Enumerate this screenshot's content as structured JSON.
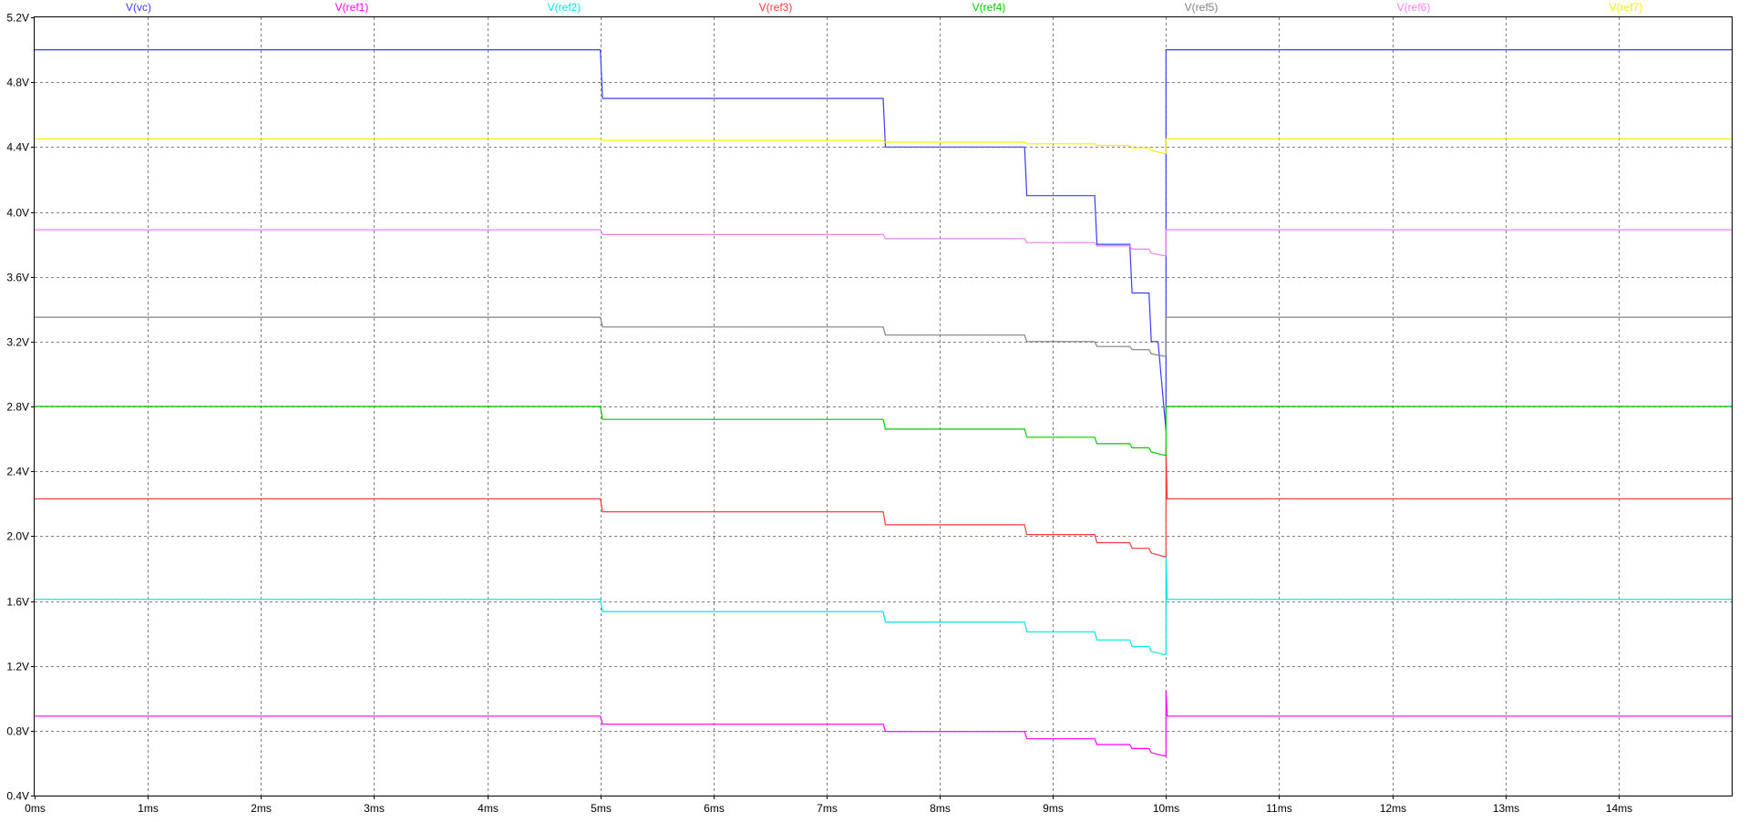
{
  "chart_data": {
    "type": "line",
    "x_unit": "ms",
    "xlim": [
      0,
      15
    ],
    "ylim": [
      0.4,
      5.2
    ],
    "x_ticks": [
      "0ms",
      "1ms",
      "2ms",
      "3ms",
      "4ms",
      "5ms",
      "6ms",
      "7ms",
      "8ms",
      "9ms",
      "10ms",
      "11ms",
      "12ms",
      "13ms",
      "14ms"
    ],
    "y_ticks": [
      "0.4V",
      "0.8V",
      "1.2V",
      "1.6V",
      "2.0V",
      "2.4V",
      "2.8V",
      "3.2V",
      "3.6V",
      "4.0V",
      "4.4V",
      "4.8V",
      "5.2V"
    ],
    "grid": true,
    "legend_position": "top",
    "series": [
      {
        "name": "V(vc)",
        "color": "#3b3bff",
        "x": [
          0,
          5.0,
          5.02,
          7.5,
          7.52,
          8.75,
          8.77,
          9.37,
          9.39,
          9.68,
          9.7,
          9.85,
          9.87,
          9.93,
          10.0,
          10.0,
          15.0
        ],
        "y": [
          5.0,
          5.0,
          4.7,
          4.7,
          4.4,
          4.4,
          4.1,
          4.1,
          3.8,
          3.8,
          3.5,
          3.5,
          3.2,
          3.2,
          2.65,
          5.0,
          5.0
        ]
      },
      {
        "name": "V(ref1)",
        "color": "#ff00ff",
        "x": [
          0,
          5.0,
          5.02,
          7.5,
          7.52,
          8.75,
          8.77,
          9.37,
          9.39,
          9.68,
          9.7,
          9.85,
          9.87,
          9.98,
          10.0,
          10.0,
          10.01,
          15.0
        ],
        "y": [
          0.89,
          0.89,
          0.84,
          0.84,
          0.795,
          0.795,
          0.75,
          0.75,
          0.715,
          0.715,
          0.69,
          0.69,
          0.665,
          0.645,
          0.645,
          1.05,
          0.89,
          0.89
        ]
      },
      {
        "name": "V(ref2)",
        "color": "#00e5e5",
        "x": [
          0,
          5.0,
          5.02,
          7.5,
          7.52,
          8.75,
          8.77,
          9.37,
          9.39,
          9.68,
          9.7,
          9.85,
          9.87,
          9.98,
          10.0,
          10.0,
          10.01,
          15.0
        ],
        "y": [
          1.61,
          1.61,
          1.535,
          1.535,
          1.47,
          1.47,
          1.41,
          1.41,
          1.36,
          1.36,
          1.32,
          1.32,
          1.29,
          1.27,
          1.27,
          1.88,
          1.61,
          1.61
        ]
      },
      {
        "name": "V(ref3)",
        "color": "#ff3b3b",
        "x": [
          0,
          5.0,
          5.02,
          7.5,
          7.52,
          8.75,
          8.77,
          9.37,
          9.39,
          9.68,
          9.7,
          9.85,
          9.87,
          9.98,
          10.0,
          10.0,
          10.01,
          15.0
        ],
        "y": [
          2.23,
          2.23,
          2.15,
          2.15,
          2.07,
          2.07,
          2.01,
          2.01,
          1.96,
          1.96,
          1.925,
          1.925,
          1.895,
          1.875,
          1.875,
          2.55,
          2.23,
          2.23
        ]
      },
      {
        "name": "V(ref4)",
        "color": "#00cc00",
        "x": [
          0,
          5.0,
          5.02,
          7.5,
          7.52,
          8.75,
          8.77,
          9.37,
          9.39,
          9.68,
          9.7,
          9.85,
          9.87,
          9.98,
          10.0,
          10.0,
          15.0
        ],
        "y": [
          2.8,
          2.8,
          2.72,
          2.72,
          2.66,
          2.66,
          2.61,
          2.61,
          2.57,
          2.57,
          2.545,
          2.545,
          2.52,
          2.5,
          2.5,
          2.8,
          2.8
        ]
      },
      {
        "name": "V(ref5)",
        "color": "#808080",
        "x": [
          0,
          5.0,
          5.02,
          7.5,
          7.52,
          8.75,
          8.77,
          9.37,
          9.39,
          9.68,
          9.7,
          9.85,
          9.87,
          9.98,
          10.0,
          10.0,
          15.0
        ],
        "y": [
          3.35,
          3.35,
          3.29,
          3.29,
          3.24,
          3.24,
          3.2,
          3.2,
          3.17,
          3.17,
          3.15,
          3.15,
          3.125,
          3.11,
          3.11,
          3.35,
          3.35
        ]
      },
      {
        "name": "V(ref6)",
        "color": "#ee82ee",
        "x": [
          0,
          5.0,
          5.02,
          7.5,
          7.52,
          8.75,
          8.77,
          9.37,
          9.39,
          9.68,
          9.7,
          9.85,
          9.87,
          9.98,
          10.0,
          10.0,
          15.0
        ],
        "y": [
          3.89,
          3.89,
          3.86,
          3.86,
          3.835,
          3.835,
          3.81,
          3.81,
          3.79,
          3.79,
          3.77,
          3.77,
          3.745,
          3.73,
          3.73,
          3.89,
          3.89
        ]
      },
      {
        "name": "V(ref7)",
        "color": "#f2f200",
        "x": [
          0,
          5.0,
          5.02,
          7.5,
          7.52,
          8.75,
          8.77,
          9.37,
          9.39,
          9.68,
          9.7,
          9.85,
          9.87,
          9.98,
          10.0,
          10.0,
          15.0
        ],
        "y": [
          4.45,
          4.45,
          4.44,
          4.44,
          4.43,
          4.43,
          4.42,
          4.42,
          4.41,
          4.41,
          4.395,
          4.395,
          4.38,
          4.36,
          4.36,
          4.45,
          4.45
        ]
      }
    ]
  }
}
